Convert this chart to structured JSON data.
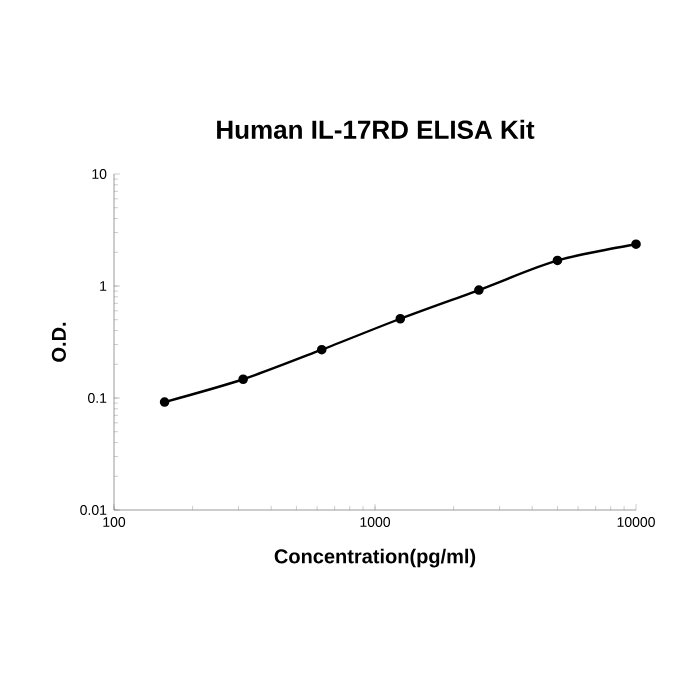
{
  "chart_data": {
    "type": "line",
    "title": "Human IL-17RD ELISA Kit",
    "xlabel": "Concentration(pg/ml)",
    "ylabel": "O.D.",
    "x": [
      156.25,
      312.5,
      625,
      1250,
      2500,
      5000,
      10000
    ],
    "series": [
      {
        "color": "#000000",
        "values": [
          0.092,
          0.147,
          0.27,
          0.51,
          0.92,
          1.69,
          2.36
        ]
      }
    ],
    "log": "xy",
    "xlim": [
      100,
      10000
    ],
    "ylim": [
      0.01,
      10
    ],
    "xticks": [
      100,
      1000,
      10000
    ],
    "yticks": [
      0.01,
      0.1,
      1,
      10
    ],
    "marker": "circle",
    "line_style": "solid"
  }
}
